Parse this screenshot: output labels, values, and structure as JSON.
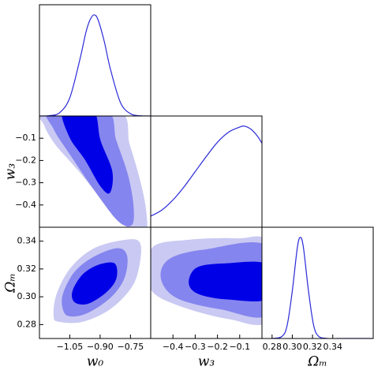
{
  "chart_data": [
    {
      "type": "line",
      "color": "#2a2ad8",
      "xlim": [
        -1.2,
        -0.65
      ],
      "ylim": [
        0,
        1.1
      ],
      "x": [
        -1.2,
        -1.15,
        -1.1,
        -1.05,
        -1.0,
        -0.97,
        -0.95,
        -0.93,
        -0.91,
        -0.88,
        -0.85,
        -0.8,
        -0.75,
        -0.7,
        -0.65
      ],
      "values": [
        0.0002,
        0.003,
        0.033,
        0.18,
        0.56,
        0.83,
        0.95,
        1,
        0.95,
        0.74,
        0.47,
        0.135,
        0.022,
        0.002,
        0
      ]
    },
    {
      "type": "contour",
      "xlim": [
        -1.2,
        -0.65
      ],
      "ylim": [
        -0.5,
        0.0
      ],
      "ylabel": "w₃",
      "yticks": [
        {
          "value": -0.1,
          "label": "−0.1"
        },
        {
          "value": -0.2,
          "label": "−0.2"
        },
        {
          "value": -0.3,
          "label": "−0.3"
        },
        {
          "value": -0.4,
          "label": "−0.4"
        }
      ],
      "contours": [
        {
          "color": "#c9c9f3",
          "x": [
            -1.184,
            -0.812,
            -0.754,
            -0.704,
            -0.673,
            -0.673,
            -0.735,
            -0.851,
            -1.006,
            -1.122,
            -1.177
          ],
          "y": [
            0.028,
            0.028,
            -0.128,
            -0.283,
            -0.421,
            -0.524,
            -0.524,
            -0.421,
            -0.248,
            -0.128,
            -0.041
          ]
        },
        {
          "color": "#8585ef",
          "x": [
            -1.153,
            -0.871,
            -0.82,
            -0.762,
            -0.735,
            -0.743,
            -0.812,
            -0.929,
            -1.045,
            -1.13
          ],
          "y": [
            0.028,
            0.028,
            -0.11,
            -0.266,
            -0.403,
            -0.49,
            -0.472,
            -0.334,
            -0.179,
            -0.059
          ]
        },
        {
          "color": "#0000e6",
          "x": [
            -1.084,
            -0.936,
            -0.898,
            -0.84,
            -0.851,
            -0.898,
            -0.975,
            -1.053
          ],
          "y": [
            0.028,
            0.028,
            -0.11,
            -0.248,
            -0.345,
            -0.317,
            -0.197,
            -0.093
          ]
        }
      ]
    },
    {
      "type": "line",
      "color": "#2a2ad8",
      "xlim": [
        -0.5,
        0.0
      ],
      "ylim": [
        0,
        1.1
      ],
      "x": [
        -0.5,
        -0.45,
        -0.4,
        -0.35,
        -0.3,
        -0.25,
        -0.2,
        -0.15,
        -0.1,
        -0.08,
        -0.05,
        -0.02,
        0.0
      ],
      "values": [
        0.11,
        0.17,
        0.27,
        0.4,
        0.55,
        0.7,
        0.84,
        0.94,
        0.99,
        1.0,
        0.97,
        0.9,
        0.83
      ]
    },
    {
      "type": "contour",
      "xlim": [
        -1.2,
        -0.65
      ],
      "ylim": [
        0.27,
        0.35
      ],
      "xlabel": "w₀",
      "ylabel": "Ωₘ",
      "xticks": [
        {
          "value": -1.05,
          "label": "−1.05"
        },
        {
          "value": -0.9,
          "label": "−0.90"
        },
        {
          "value": -0.75,
          "label": "−0.75"
        }
      ],
      "yticks": [
        {
          "value": 0.28,
          "label": "0.28"
        },
        {
          "value": 0.3,
          "label": "0.30"
        },
        0.32,
        0.34
      ],
      "contours": [
        {
          "color": "#c9c9f3",
          "x": [
            -1.13,
            -1.115,
            -1.045,
            -0.929,
            -0.774,
            -0.704,
            -0.704,
            -0.743,
            -0.851,
            -0.987,
            -1.103
          ],
          "y": [
            0.286,
            0.302,
            0.321,
            0.335,
            0.341,
            0.339,
            0.324,
            0.307,
            0.291,
            0.282,
            0.282
          ]
        },
        {
          "color": "#8585ef",
          "x": [
            -1.084,
            -1.084,
            -1.026,
            -0.929,
            -0.812,
            -0.766,
            -0.781,
            -0.851,
            -0.967,
            -1.053
          ],
          "y": [
            0.291,
            0.302,
            0.318,
            0.329,
            0.335,
            0.329,
            0.313,
            0.299,
            0.288,
            0.286
          ]
        },
        {
          "color": "#0000e6",
          "x": [
            -1.026,
            -1.037,
            -0.987,
            -0.909,
            -0.828,
            -0.82,
            -0.871,
            -0.96
          ],
          "y": [
            0.296,
            0.304,
            0.316,
            0.323,
            0.324,
            0.313,
            0.303,
            0.295
          ]
        }
      ]
    },
    {
      "type": "contour",
      "xlim": [
        -0.5,
        0.0
      ],
      "ylim": [
        0.27,
        0.35
      ],
      "xlabel": "w₃",
      "xticks": [
        {
          "value": -0.4,
          "label": "−0.4"
        },
        {
          "value": -0.3,
          "label": "−0.3"
        },
        {
          "value": -0.2,
          "label": "−0.2"
        },
        {
          "value": -0.1,
          "label": "−0.1"
        }
      ],
      "contours": [
        {
          "color": "#c9c9f3",
          "x": [
            -0.507,
            -0.489,
            -0.329,
            -0.114,
            0.029,
            0.029,
            -0.15,
            -0.364,
            -0.489
          ],
          "y": [
            0.316,
            0.336,
            0.341,
            0.342,
            0.338,
            0.284,
            0.284,
            0.293,
            0.303
          ]
        },
        {
          "color": "#8585ef",
          "x": [
            -0.454,
            -0.418,
            -0.257,
            0.029,
            0.029,
            -0.186,
            -0.382
          ],
          "y": [
            0.313,
            0.327,
            0.334,
            0.336,
            0.288,
            0.291,
            0.299
          ]
        },
        {
          "color": "#0000e6",
          "x": [
            -0.329,
            -0.293,
            -0.168,
            0.029,
            0.029,
            -0.15,
            -0.286
          ],
          "y": [
            0.31,
            0.321,
            0.324,
            0.323,
            0.299,
            0.298,
            0.302
          ]
        }
      ]
    },
    {
      "type": "line",
      "color": "#2a2ad8",
      "xlim": [
        0.27,
        0.38
      ],
      "ylim": [
        0,
        1.1
      ],
      "xlabel": "Ωₘ",
      "xticks": [
        0.28,
        {
          "value": 0.3,
          "label": "0.30"
        },
        0.32,
        0.34
      ],
      "x": [
        0.27,
        0.28,
        0.29,
        0.295,
        0.3,
        0.305,
        0.308,
        0.311,
        0.316,
        0.321,
        0.326,
        0.335,
        0.345,
        0.355,
        0.38
      ],
      "values": [
        0,
        0.0001,
        0.022,
        0.135,
        0.47,
        0.9,
        1,
        0.9,
        0.47,
        0.135,
        0.022,
        0.0002,
        0,
        0,
        0
      ]
    }
  ]
}
